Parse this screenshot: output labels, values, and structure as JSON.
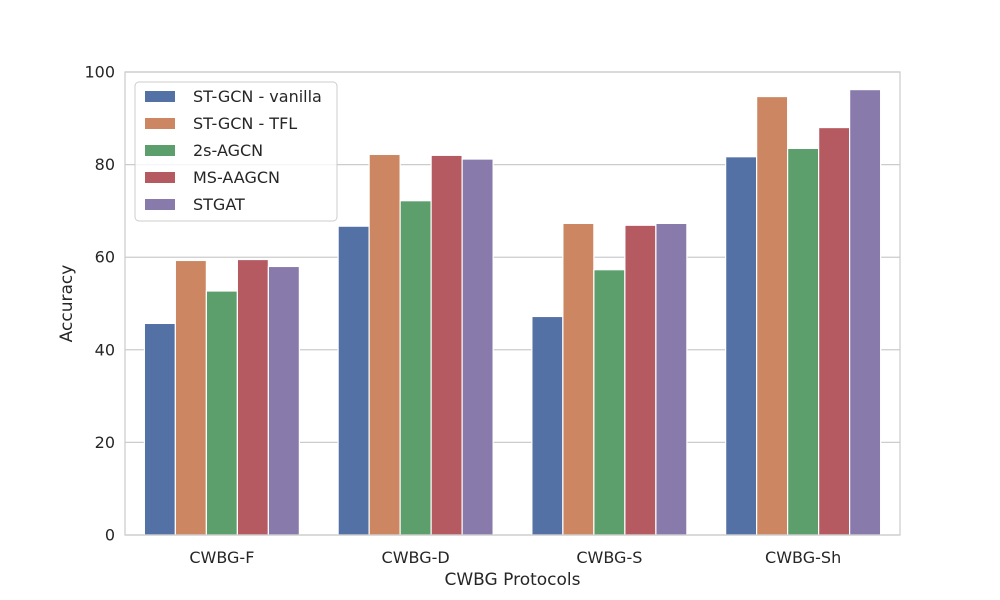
{
  "chart_data": {
    "type": "bar",
    "xlabel": "CWBG Protocols",
    "ylabel": "Accuracy",
    "ylim": [
      0,
      100
    ],
    "yticks": [
      0,
      20,
      40,
      60,
      80,
      100
    ],
    "categories": [
      "CWBG-F",
      "CWBG-D",
      "CWBG-S",
      "CWBG-Sh"
    ],
    "series": [
      {
        "name": "ST-GCN - vanilla",
        "color": "#5471a6",
        "values": [
          45.7,
          66.7,
          47.2,
          81.7
        ]
      },
      {
        "name": "ST-GCN - TFL",
        "color": "#cc8762",
        "values": [
          59.3,
          82.2,
          67.3,
          94.7
        ]
      },
      {
        "name": "2s-AGCN",
        "color": "#5c9f6d",
        "values": [
          52.7,
          72.2,
          57.3,
          83.5
        ]
      },
      {
        "name": "MS-AAGCN",
        "color": "#b65a62",
        "values": [
          59.5,
          82.0,
          66.9,
          88.0
        ]
      },
      {
        "name": "STGAT",
        "color": "#887bab",
        "values": [
          58.0,
          81.2,
          67.3,
          96.2
        ]
      }
    ],
    "grid": true,
    "legend_position": "top-left"
  }
}
